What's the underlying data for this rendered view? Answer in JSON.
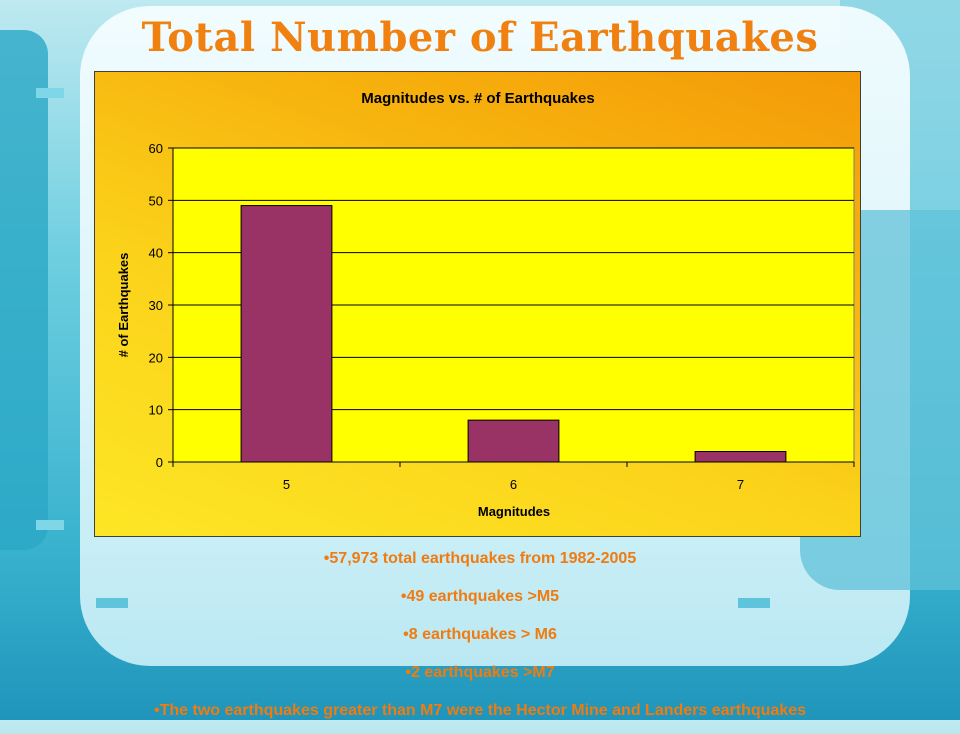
{
  "slide": {
    "title": "Total Number of Earthquakes"
  },
  "colors": {
    "title": "#f08010",
    "bar": "#993366",
    "plot_bg": "#ffff00",
    "bullet_text": "#f07b10"
  },
  "chart_data": {
    "type": "bar",
    "title": "Magnitudes vs. # of Earthquakes",
    "xlabel": "Magnitudes",
    "ylabel": "# of Earthquakes",
    "categories": [
      "5",
      "6",
      "7"
    ],
    "values": [
      49,
      8,
      2
    ],
    "ylim": [
      0,
      60
    ],
    "yticks": [
      "0",
      "10",
      "20",
      "30",
      "40",
      "50",
      "60"
    ],
    "grid": true,
    "legend": "none"
  },
  "bullets": [
    "57,973 total earthquakes from 1982-2005",
    "49 earthquakes >M5",
    "8 earthquakes > M6",
    "2 earthquakes >M7",
    "The two earthquakes greater than M7 were the Hector Mine and Landers earthquakes"
  ]
}
